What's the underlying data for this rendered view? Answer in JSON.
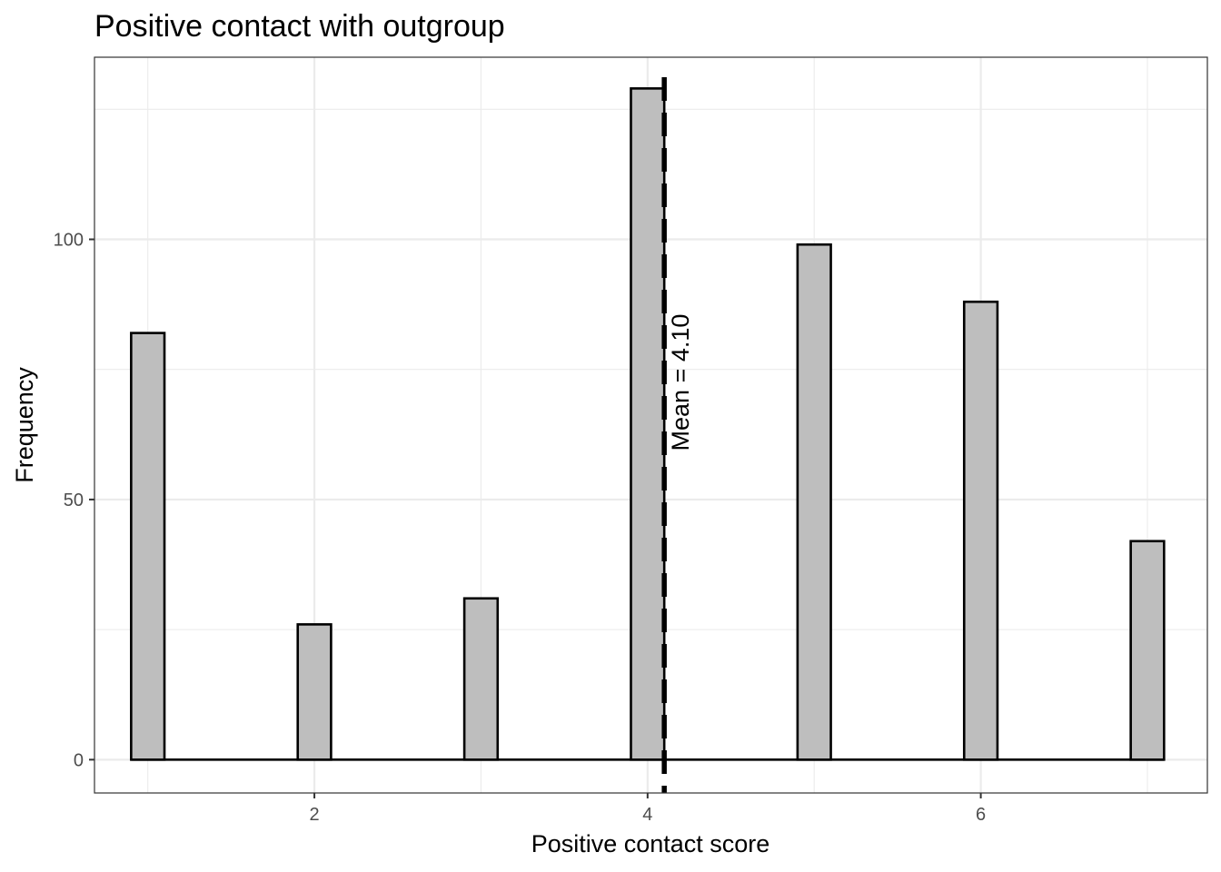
{
  "chart_data": {
    "type": "bar",
    "title": "Positive contact with outgroup",
    "xlabel": "Positive contact score",
    "ylabel": "Frequency",
    "x": [
      1,
      2,
      3,
      4,
      5,
      6,
      7
    ],
    "values": [
      82,
      26,
      31,
      129,
      99,
      88,
      42
    ],
    "xlim": [
      0.68,
      7.36
    ],
    "ylim": [
      -6.4,
      135
    ],
    "x_ticks": [
      2,
      4,
      6
    ],
    "x_tick_labels": [
      "2",
      "4",
      "6"
    ],
    "y_ticks": [
      0,
      50,
      100
    ],
    "y_tick_labels": [
      "0",
      "50",
      "100"
    ],
    "grid": true,
    "bar_fill": "#bebebe",
    "bar_outline": "#000000",
    "mean": {
      "value": 4.1,
      "label": "Mean = 4.10",
      "line_style": "dashed"
    }
  }
}
